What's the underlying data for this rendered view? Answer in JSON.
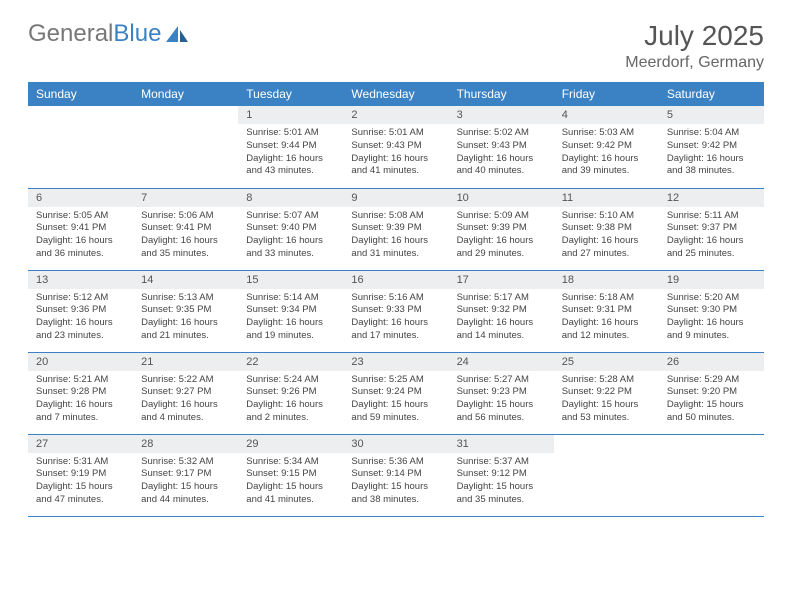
{
  "brand": {
    "part1": "General",
    "part2": "Blue"
  },
  "title": "July 2025",
  "location": "Meerdorf, Germany",
  "colors": {
    "header_bg": "#3b82c4",
    "header_text": "#ffffff",
    "daynum_bg": "#eceef0",
    "border": "#3b82c4",
    "text": "#444444",
    "title": "#555555"
  },
  "daynames": [
    "Sunday",
    "Monday",
    "Tuesday",
    "Wednesday",
    "Thursday",
    "Friday",
    "Saturday"
  ],
  "weeks": [
    [
      null,
      null,
      {
        "n": "1",
        "sr": "5:01 AM",
        "ss": "9:44 PM",
        "dl": "16 hours and 43 minutes."
      },
      {
        "n": "2",
        "sr": "5:01 AM",
        "ss": "9:43 PM",
        "dl": "16 hours and 41 minutes."
      },
      {
        "n": "3",
        "sr": "5:02 AM",
        "ss": "9:43 PM",
        "dl": "16 hours and 40 minutes."
      },
      {
        "n": "4",
        "sr": "5:03 AM",
        "ss": "9:42 PM",
        "dl": "16 hours and 39 minutes."
      },
      {
        "n": "5",
        "sr": "5:04 AM",
        "ss": "9:42 PM",
        "dl": "16 hours and 38 minutes."
      }
    ],
    [
      {
        "n": "6",
        "sr": "5:05 AM",
        "ss": "9:41 PM",
        "dl": "16 hours and 36 minutes."
      },
      {
        "n": "7",
        "sr": "5:06 AM",
        "ss": "9:41 PM",
        "dl": "16 hours and 35 minutes."
      },
      {
        "n": "8",
        "sr": "5:07 AM",
        "ss": "9:40 PM",
        "dl": "16 hours and 33 minutes."
      },
      {
        "n": "9",
        "sr": "5:08 AM",
        "ss": "9:39 PM",
        "dl": "16 hours and 31 minutes."
      },
      {
        "n": "10",
        "sr": "5:09 AM",
        "ss": "9:39 PM",
        "dl": "16 hours and 29 minutes."
      },
      {
        "n": "11",
        "sr": "5:10 AM",
        "ss": "9:38 PM",
        "dl": "16 hours and 27 minutes."
      },
      {
        "n": "12",
        "sr": "5:11 AM",
        "ss": "9:37 PM",
        "dl": "16 hours and 25 minutes."
      }
    ],
    [
      {
        "n": "13",
        "sr": "5:12 AM",
        "ss": "9:36 PM",
        "dl": "16 hours and 23 minutes."
      },
      {
        "n": "14",
        "sr": "5:13 AM",
        "ss": "9:35 PM",
        "dl": "16 hours and 21 minutes."
      },
      {
        "n": "15",
        "sr": "5:14 AM",
        "ss": "9:34 PM",
        "dl": "16 hours and 19 minutes."
      },
      {
        "n": "16",
        "sr": "5:16 AM",
        "ss": "9:33 PM",
        "dl": "16 hours and 17 minutes."
      },
      {
        "n": "17",
        "sr": "5:17 AM",
        "ss": "9:32 PM",
        "dl": "16 hours and 14 minutes."
      },
      {
        "n": "18",
        "sr": "5:18 AM",
        "ss": "9:31 PM",
        "dl": "16 hours and 12 minutes."
      },
      {
        "n": "19",
        "sr": "5:20 AM",
        "ss": "9:30 PM",
        "dl": "16 hours and 9 minutes."
      }
    ],
    [
      {
        "n": "20",
        "sr": "5:21 AM",
        "ss": "9:28 PM",
        "dl": "16 hours and 7 minutes."
      },
      {
        "n": "21",
        "sr": "5:22 AM",
        "ss": "9:27 PM",
        "dl": "16 hours and 4 minutes."
      },
      {
        "n": "22",
        "sr": "5:24 AM",
        "ss": "9:26 PM",
        "dl": "16 hours and 2 minutes."
      },
      {
        "n": "23",
        "sr": "5:25 AM",
        "ss": "9:24 PM",
        "dl": "15 hours and 59 minutes."
      },
      {
        "n": "24",
        "sr": "5:27 AM",
        "ss": "9:23 PM",
        "dl": "15 hours and 56 minutes."
      },
      {
        "n": "25",
        "sr": "5:28 AM",
        "ss": "9:22 PM",
        "dl": "15 hours and 53 minutes."
      },
      {
        "n": "26",
        "sr": "5:29 AM",
        "ss": "9:20 PM",
        "dl": "15 hours and 50 minutes."
      }
    ],
    [
      {
        "n": "27",
        "sr": "5:31 AM",
        "ss": "9:19 PM",
        "dl": "15 hours and 47 minutes."
      },
      {
        "n": "28",
        "sr": "5:32 AM",
        "ss": "9:17 PM",
        "dl": "15 hours and 44 minutes."
      },
      {
        "n": "29",
        "sr": "5:34 AM",
        "ss": "9:15 PM",
        "dl": "15 hours and 41 minutes."
      },
      {
        "n": "30",
        "sr": "5:36 AM",
        "ss": "9:14 PM",
        "dl": "15 hours and 38 minutes."
      },
      {
        "n": "31",
        "sr": "5:37 AM",
        "ss": "9:12 PM",
        "dl": "15 hours and 35 minutes."
      },
      null,
      null
    ]
  ],
  "labels": {
    "sunrise": "Sunrise: ",
    "sunset": "Sunset: ",
    "daylight": "Daylight: "
  }
}
